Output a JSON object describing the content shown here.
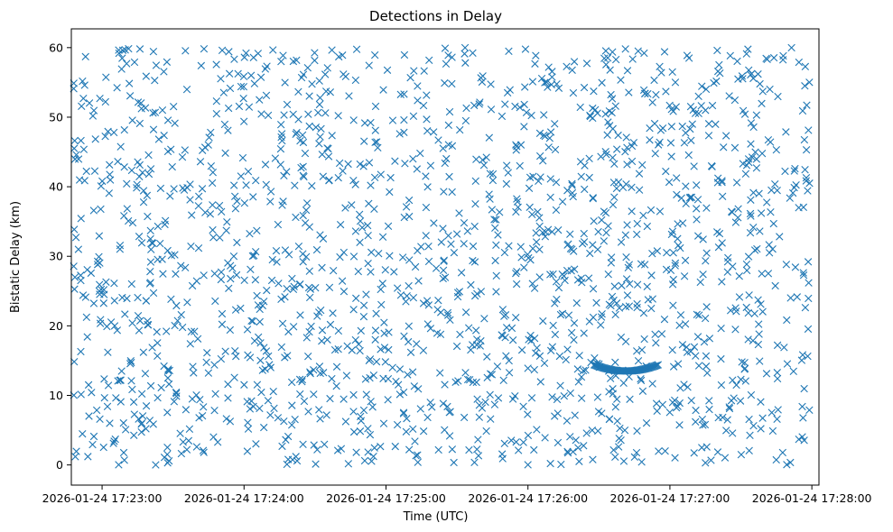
{
  "chart_data": {
    "type": "scatter",
    "title": "Detections in Delay",
    "xlabel": "Time (UTC)",
    "ylabel": "Bistatic Delay (km)",
    "marker": "x",
    "color": "#1f77b4",
    "grid": false,
    "x_axis": {
      "type": "datetime",
      "range": [
        "2026-01-24 17:22:47",
        "2026-01-24 17:28:03"
      ],
      "tick_labels": [
        "2026-01-24 17:23:00",
        "2026-01-24 17:24:00",
        "2026-01-24 17:25:00",
        "2026-01-24 17:26:00",
        "2026-01-24 17:27:00",
        "2026-01-24 17:28:00"
      ]
    },
    "y_axis": {
      "range": [
        -2.9,
        62.7
      ],
      "tick_labels": [
        "0",
        "10",
        "20",
        "30",
        "40",
        "50",
        "60"
      ]
    },
    "x_data_extent": [
      "2026-01-24 17:22:48",
      "2026-01-24 17:27:59"
    ],
    "y_data_extent": [
      0,
      60
    ],
    "note": "",
    "series": [
      {
        "description_points": [
          {
            "x": "2026-01-24 17:22:48",
            "y": 54.1
          },
          {
            "x": "2026-01-24 17:22:50",
            "y": 31
          },
          {
            "x": "2026-01-24 17:22:51",
            "y": 16.3
          },
          {
            "x": "2026-01-24 17:22:53",
            "y": 58.7
          },
          {
            "x": "2026-01-24 17:22:54",
            "y": 1.2
          },
          {
            "x": "2026-01-24 17:23:05",
            "y": 47.8
          },
          {
            "x": "2026-01-24 17:23:16",
            "y": 59.8
          },
          {
            "x": "2026-01-24 17:23:40",
            "y": 2.6
          },
          {
            "x": "2026-01-24 17:24:12",
            "y": 29.5
          },
          {
            "x": "2026-01-24 17:24:55",
            "y": 36.8
          },
          {
            "x": "2026-01-24 17:25:30",
            "y": 33.2
          },
          {
            "x": "2026-01-24 17:26:02",
            "y": 55.1
          },
          {
            "x": "2026-01-24 17:26:30",
            "y": 14.5
          },
          {
            "x": "2026-01-24 17:26:40",
            "y": 13.6
          },
          {
            "x": "2026-01-24 17:26:50",
            "y": 14.2
          },
          {
            "x": "2026-01-24 17:27:20",
            "y": 59.6
          },
          {
            "x": "2026-01-24 17:27:45",
            "y": 45.3
          },
          {
            "x": "2026-01-24 17:27:59",
            "y": 40.5
          }
        ],
        "dense_background": {
          "count": 1700,
          "x_range": [
            "2026-01-24 17:22:48",
            "2026-01-24 17:27:59"
          ],
          "y_range": [
            0,
            60
          ],
          "distribution": "uniform",
          "seed": 7
        },
        "arc_track": {
          "x_range": [
            "2026-01-24 17:26:28",
            "2026-01-24 17:26:55"
          ],
          "y_ends": 14.4,
          "y_min": 13.5,
          "count": 60
        }
      }
    ]
  }
}
